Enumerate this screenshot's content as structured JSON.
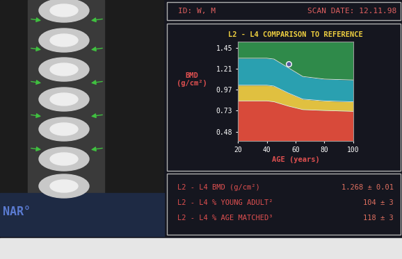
{
  "header": {
    "id": "ID: W, M",
    "scan_date": "SCAN DATE: 12.11.98"
  },
  "logo": "NAR°",
  "chart_data": {
    "type": "area",
    "title": "L2 - L4 COMPARISON TO REFERENCE",
    "x_label": "AGE (years)",
    "y_label": "BMD\n(g/cm²)",
    "x": [
      20,
      40,
      45,
      55,
      65,
      80,
      100
    ],
    "series": [
      {
        "color": "#d84a3a",
        "values": [
          0.84,
          0.84,
          0.83,
          0.78,
          0.74,
          0.73,
          0.72
        ]
      },
      {
        "color": "#e0c040",
        "values": [
          1.02,
          1.02,
          1.01,
          0.93,
          0.86,
          0.84,
          0.83
        ]
      },
      {
        "color": "#2aa0b0",
        "values": [
          1.33,
          1.33,
          1.32,
          1.22,
          1.12,
          1.09,
          1.08
        ]
      },
      {
        "type": "scatter",
        "x": [
          55
        ],
        "values": [
          1.268
        ],
        "marker": "o",
        "color": "#5a5aa0"
      }
    ],
    "color": "#2f8a4a",
    "xlim": [
      20,
      100
    ],
    "xticks": [
      20,
      40,
      60,
      80,
      100
    ],
    "ylim": [
      0.38,
      1.52
    ],
    "yticks": [
      0.48,
      0.73,
      0.97,
      1.21,
      1.45
    ]
  },
  "results": {
    "rows": [
      [
        "L2 - L4 BMD (g/cm²)",
        "1.268 ± 0.01"
      ],
      [
        "L2 - L4 % YOUNG ADULT²",
        "104 ± 3"
      ],
      [
        "L2 - L4 % AGE MATCHED³",
        "118 ± 3"
      ]
    ]
  }
}
